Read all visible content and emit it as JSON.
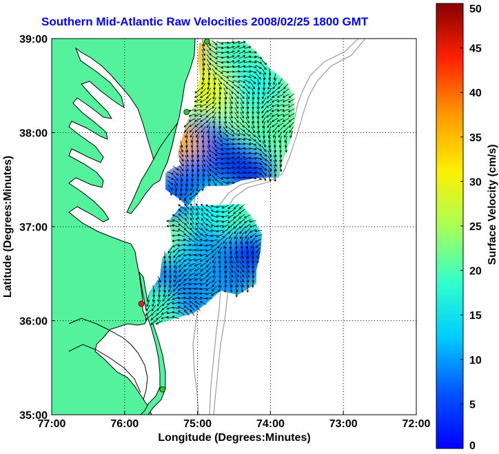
{
  "title": "Southern Mid-Atlantic Raw Velocities 2008/02/25 1800 GMT",
  "map": {
    "xlabel": "Longitude (Degrees:Minutes)",
    "ylabel": "Latitude (Degrees:Minutes)",
    "lon_range": [
      -77,
      -72
    ],
    "lat_range": [
      35,
      39
    ],
    "x_ticks": [
      {
        "value": -77,
        "label": "77:00"
      },
      {
        "value": -76,
        "label": "76:00"
      },
      {
        "value": -75,
        "label": "75:00"
      },
      {
        "value": -74,
        "label": "74:00"
      },
      {
        "value": -73,
        "label": "73:00"
      },
      {
        "value": -72,
        "label": "72:00"
      }
    ],
    "y_ticks": [
      {
        "value": 39,
        "label": "39:00"
      },
      {
        "value": 38,
        "label": "38:00"
      },
      {
        "value": 37,
        "label": "37:00"
      },
      {
        "value": 36,
        "label": "36:00"
      },
      {
        "value": 35,
        "label": "35:00"
      }
    ],
    "grid": "dotted",
    "land_color": "#55f29e",
    "bathymetry_color": "#9a9a9a",
    "arrow_color": "#000000",
    "stations": [
      {
        "lon": -74.87,
        "lat": 38.97,
        "color": "#22cc22"
      },
      {
        "lon": -75.15,
        "lat": 38.22,
        "color": "#22cc22"
      },
      {
        "lon": -75.77,
        "lat": 36.18,
        "color": "#ee2222"
      },
      {
        "lon": -75.48,
        "lat": 35.27,
        "color": "#22cc22"
      }
    ]
  },
  "colorbar": {
    "label": "Surface Velocity (cm/s)",
    "min": 0,
    "max": 50,
    "ticks": [
      {
        "value": 50,
        "label": "50"
      },
      {
        "value": 45,
        "label": "45"
      },
      {
        "value": 40,
        "label": "40"
      },
      {
        "value": 35,
        "label": "35"
      },
      {
        "value": 30,
        "label": "30"
      },
      {
        "value": 25,
        "label": "25"
      },
      {
        "value": 20,
        "label": "20"
      },
      {
        "value": 15,
        "label": "15"
      },
      {
        "value": 10,
        "label": "10"
      },
      {
        "value": 5,
        "label": "5"
      },
      {
        "value": 0,
        "label": "0"
      }
    ],
    "colormap": "jet"
  },
  "chart_data": {
    "type": "heatmap",
    "title": "Southern Mid-Atlantic Raw Velocities 2008/02/25 1800 GMT",
    "xlabel": "Longitude (Degrees:Minutes)",
    "ylabel": "Latitude (Degrees:Minutes)",
    "xlim": [
      -77,
      -72
    ],
    "ylim": [
      35,
      39
    ],
    "color_scale": {
      "label": "Surface Velocity (cm/s)",
      "range": [
        0,
        50
      ]
    },
    "regions": [
      {
        "lon": -75.0,
        "lat": 38.85,
        "speed": 35
      },
      {
        "lon": -74.55,
        "lat": 38.85,
        "speed": 22
      },
      {
        "lon": -74.2,
        "lat": 38.5,
        "speed": 20
      },
      {
        "lon": -74.85,
        "lat": 38.45,
        "speed": 30
      },
      {
        "lon": -74.05,
        "lat": 38.05,
        "speed": 23
      },
      {
        "lon": -74.95,
        "lat": 37.9,
        "speed": 11
      },
      {
        "lon": -75.25,
        "lat": 37.85,
        "speed": 35
      },
      {
        "lon": -74.6,
        "lat": 37.7,
        "speed": 10
      },
      {
        "lon": -74.3,
        "lat": 37.6,
        "speed": 9
      },
      {
        "lon": -75.1,
        "lat": 37.5,
        "speed": 12
      },
      {
        "lon": -75.3,
        "lat": 37.35,
        "speed": 11
      },
      {
        "lon": -74.75,
        "lat": 37.15,
        "speed": 19
      },
      {
        "lon": -74.4,
        "lat": 37.0,
        "speed": 22
      },
      {
        "lon": -74.05,
        "lat": 36.8,
        "speed": 21
      },
      {
        "lon": -74.3,
        "lat": 36.7,
        "speed": 7
      },
      {
        "lon": -74.9,
        "lat": 36.75,
        "speed": 14
      },
      {
        "lon": -75.1,
        "lat": 36.55,
        "speed": 16
      },
      {
        "lon": -74.55,
        "lat": 36.45,
        "speed": 12
      },
      {
        "lon": -75.55,
        "lat": 36.35,
        "speed": 6
      },
      {
        "lon": -75.15,
        "lat": 36.25,
        "speed": 11
      },
      {
        "lon": -75.6,
        "lat": 36.15,
        "speed": 22
      },
      {
        "lon": -74.85,
        "lat": 36.35,
        "speed": 14
      }
    ]
  }
}
